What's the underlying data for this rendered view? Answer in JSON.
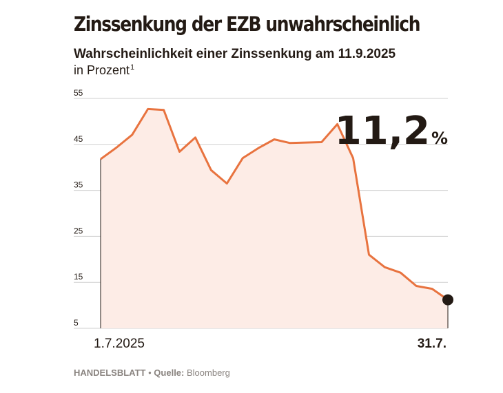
{
  "header": {
    "title": "Zinssenkung der EZB unwahrscheinlich",
    "subtitle": "Wahrscheinlichkeit einer Zinssenkung am 11.9.2025",
    "unit_label": "in Prozent",
    "unit_footnote": "1"
  },
  "highlight": {
    "value": "11,2",
    "unit": "%"
  },
  "footer": {
    "brand": "HANDELSBLATT",
    "separator": "•",
    "source_label": "Quelle:",
    "source": "Bloomberg"
  },
  "colors": {
    "line": "#e8733f",
    "area": "#fdece6",
    "grid": "#cfcfcf",
    "text": "#231a14",
    "marker": "#231a14"
  },
  "chart_data": {
    "type": "area",
    "x_start_label": "1.7.2025",
    "x_end_label": "31.7.",
    "y_ticks": [
      "55",
      "45",
      "35",
      "25",
      "15",
      "5"
    ],
    "ylim": [
      5,
      55
    ],
    "grid": true,
    "series": [
      {
        "values": [
          41.8,
          44.3,
          47.1,
          52.7,
          52.5,
          43.4,
          46.5,
          39.4,
          36.5,
          42.0,
          44.2,
          46.1,
          45.3,
          45.4,
          45.5,
          49.4,
          42.0,
          21.0,
          18.3,
          17.1,
          14.2,
          13.6,
          11.2
        ]
      }
    ]
  }
}
